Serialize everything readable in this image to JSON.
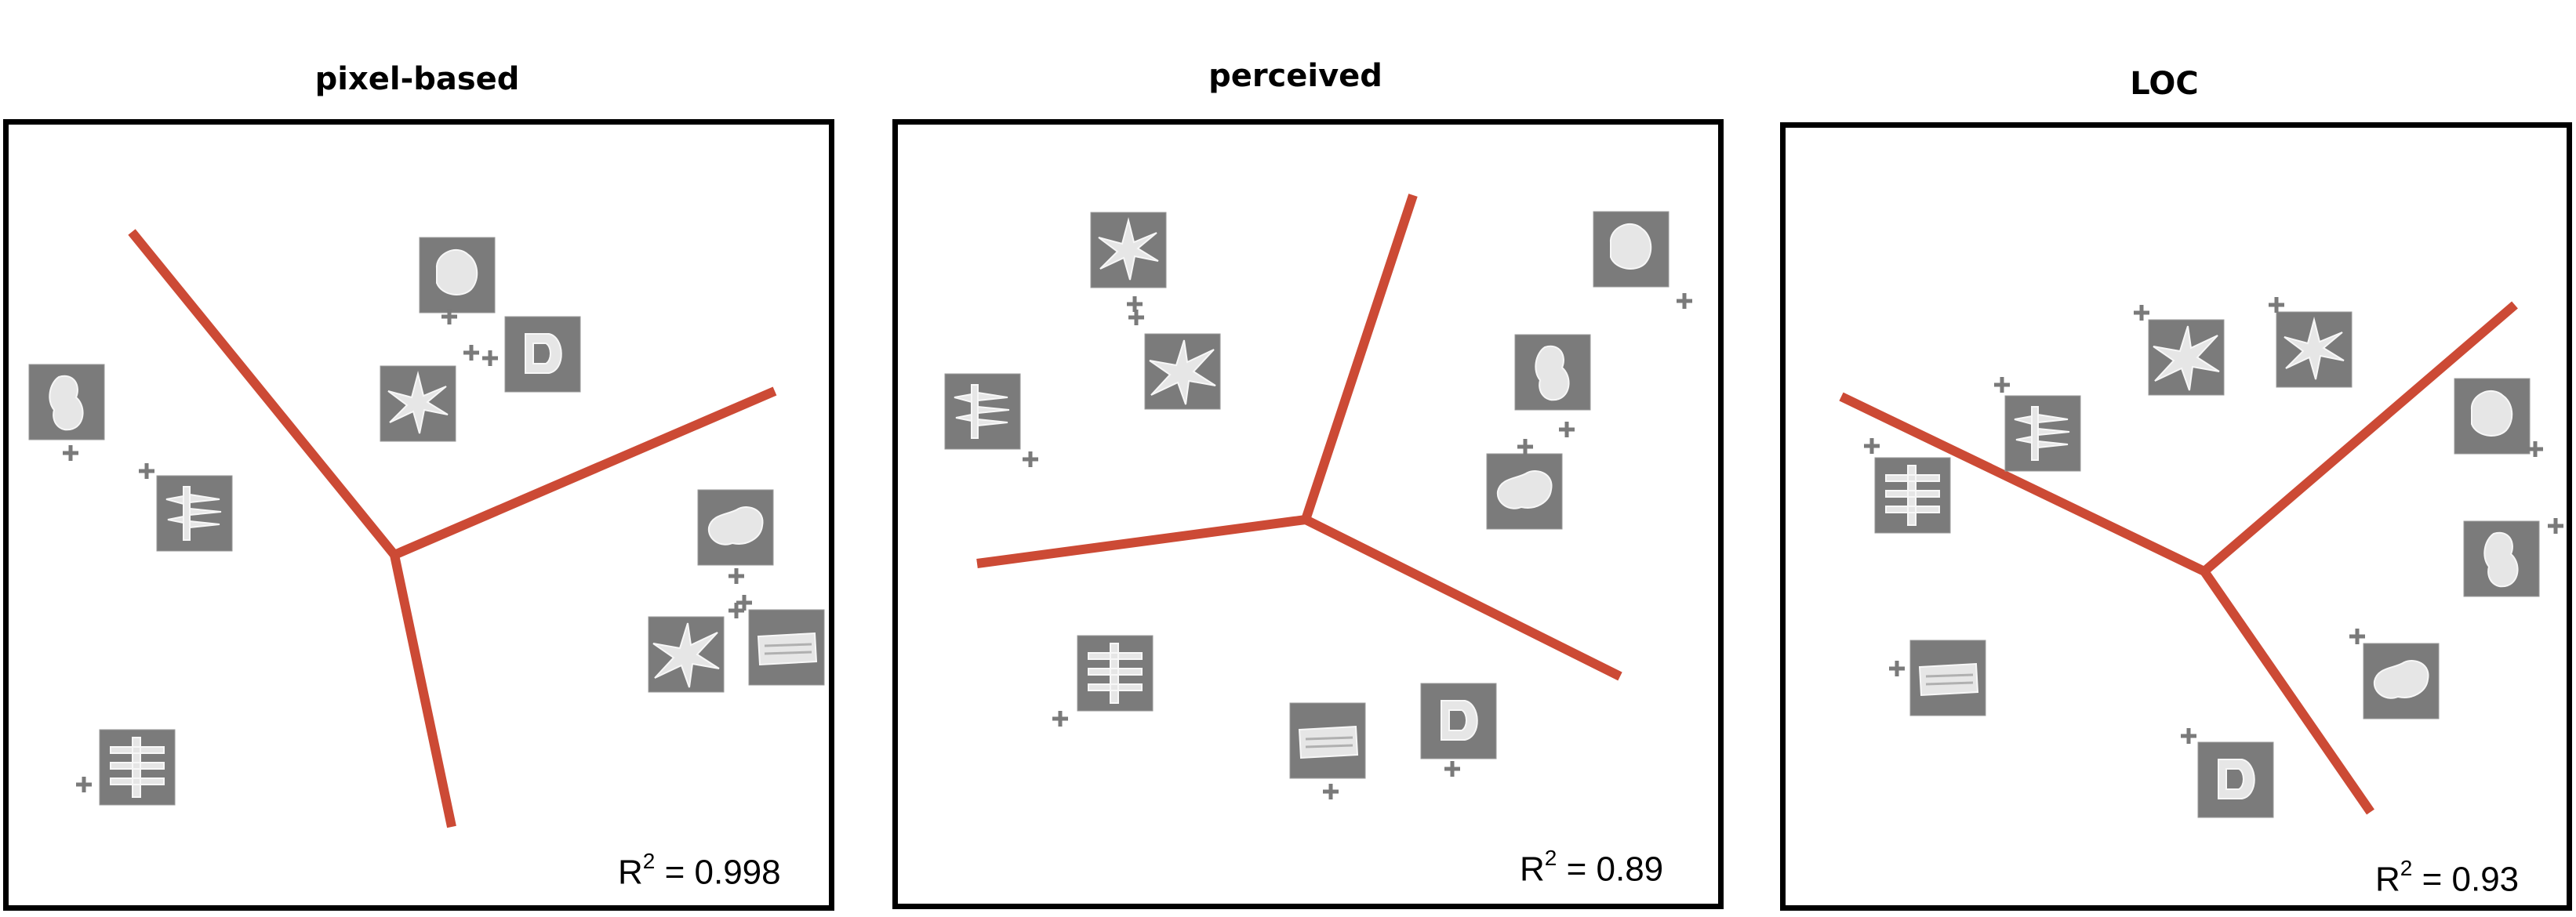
{
  "panels": [
    {
      "title": "pixel-based",
      "r2_label": "R",
      "r2_sup": "2",
      "r2_value": " = 0.998"
    },
    {
      "title": "perceived",
      "r2_label": "R",
      "r2_sup": "2",
      "r2_value": " = 0.89"
    },
    {
      "title": "LOC",
      "r2_label": "R",
      "r2_sup": "2",
      "r2_value": " = 0.93"
    }
  ],
  "colors": {
    "boundary": "#cc4a35",
    "thumbnail": "#7b7b7b",
    "marker": "#7a7a7a",
    "frame": "#000000"
  },
  "icons": [
    "blob-shape-icon",
    "spiky-shape-icon",
    "comb-shape-icon",
    "block-shape-icon",
    "letter-d-shape-icon"
  ]
}
